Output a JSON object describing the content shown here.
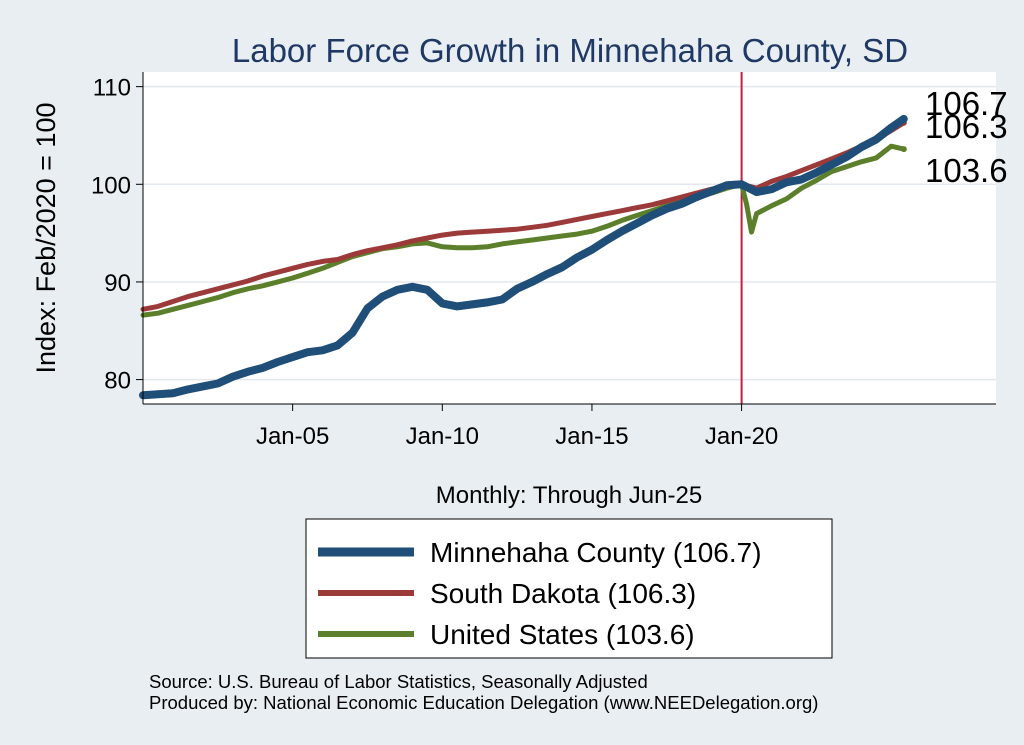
{
  "chart_data": {
    "type": "line",
    "title": "Labor Force Growth in Minnehaha  County, SD",
    "ylabel": "Index: Feb/2020 = 100",
    "xlabel": "Monthly: Through Jun-25",
    "ylim": [
      77.5,
      111.5
    ],
    "xlim": [
      2000.0,
      2028.5
    ],
    "yticks": [
      80,
      90,
      100,
      110
    ],
    "xticks": [
      {
        "label": "Jan-05",
        "x": 2005.0
      },
      {
        "label": "Jan-10",
        "x": 2010.0
      },
      {
        "label": "Jan-15",
        "x": 2015.0
      },
      {
        "label": "Jan-20",
        "x": 2020.0
      }
    ],
    "reference_line": {
      "x": 2020.0,
      "color": "#c0203b"
    },
    "end_labels": [
      "106.7",
      "106.3",
      "103.6"
    ],
    "series": [
      {
        "name": "Minnehaha  County",
        "end_value": "106.7",
        "color": "#1f4e79",
        "width": 8,
        "x": [
          2000.0,
          2000.5,
          2001.0,
          2001.5,
          2002.0,
          2002.5,
          2003.0,
          2003.5,
          2004.0,
          2004.5,
          2005.0,
          2005.5,
          2006.0,
          2006.5,
          2007.0,
          2007.5,
          2008.0,
          2008.5,
          2009.0,
          2009.5,
          2010.0,
          2010.5,
          2011.0,
          2011.5,
          2012.0,
          2012.5,
          2013.0,
          2013.5,
          2014.0,
          2014.5,
          2015.0,
          2015.5,
          2016.0,
          2016.5,
          2017.0,
          2017.5,
          2018.0,
          2018.5,
          2019.0,
          2019.5,
          2020.0,
          2020.5,
          2021.0,
          2021.5,
          2022.0,
          2022.5,
          2023.0,
          2023.5,
          2024.0,
          2024.5,
          2025.0,
          2025.42
        ],
        "values": [
          78.4,
          78.5,
          78.6,
          79.0,
          79.3,
          79.6,
          80.3,
          80.8,
          81.2,
          81.8,
          82.3,
          82.8,
          83.0,
          83.5,
          84.8,
          87.3,
          88.5,
          89.2,
          89.5,
          89.2,
          87.8,
          87.5,
          87.7,
          87.9,
          88.2,
          89.3,
          90.0,
          90.8,
          91.5,
          92.5,
          93.3,
          94.3,
          95.2,
          96.0,
          96.8,
          97.5,
          98.0,
          98.7,
          99.3,
          99.9,
          100.0,
          99.2,
          99.5,
          100.2,
          100.5,
          101.2,
          102.0,
          102.8,
          103.8,
          104.6,
          105.8,
          106.7
        ]
      },
      {
        "name": "South Dakota",
        "end_value": "106.3",
        "color": "#9c3a3a",
        "width": 5,
        "x": [
          2000.0,
          2000.5,
          2001.0,
          2001.5,
          2002.0,
          2002.5,
          2003.0,
          2003.5,
          2004.0,
          2004.5,
          2005.0,
          2005.5,
          2006.0,
          2006.5,
          2007.0,
          2007.5,
          2008.0,
          2008.5,
          2009.0,
          2009.5,
          2010.0,
          2010.5,
          2011.0,
          2011.5,
          2012.0,
          2012.5,
          2013.0,
          2013.5,
          2014.0,
          2014.5,
          2015.0,
          2015.5,
          2016.0,
          2016.5,
          2017.0,
          2017.5,
          2018.0,
          2018.5,
          2019.0,
          2019.5,
          2020.0,
          2020.5,
          2021.0,
          2021.5,
          2022.0,
          2022.5,
          2023.0,
          2023.5,
          2024.0,
          2024.5,
          2025.0,
          2025.42
        ],
        "values": [
          87.2,
          87.5,
          88.0,
          88.5,
          88.9,
          89.3,
          89.7,
          90.1,
          90.6,
          91.0,
          91.4,
          91.8,
          92.1,
          92.3,
          92.8,
          93.2,
          93.5,
          93.8,
          94.2,
          94.5,
          94.8,
          95.0,
          95.1,
          95.2,
          95.3,
          95.4,
          95.6,
          95.8,
          96.1,
          96.4,
          96.7,
          97.0,
          97.3,
          97.6,
          97.9,
          98.3,
          98.7,
          99.1,
          99.5,
          99.8,
          100.0,
          99.6,
          100.3,
          100.8,
          101.4,
          102.0,
          102.6,
          103.2,
          103.9,
          104.6,
          105.5,
          106.3
        ]
      },
      {
        "name": "United States",
        "end_value": "103.6",
        "color": "#5b7f2a",
        "width": 5,
        "x": [
          2000.0,
          2000.5,
          2001.0,
          2001.5,
          2002.0,
          2002.5,
          2003.0,
          2003.5,
          2004.0,
          2004.5,
          2005.0,
          2005.5,
          2006.0,
          2006.5,
          2007.0,
          2007.5,
          2008.0,
          2008.5,
          2009.0,
          2009.5,
          2010.0,
          2010.5,
          2011.0,
          2011.5,
          2012.0,
          2012.5,
          2013.0,
          2013.5,
          2014.0,
          2014.5,
          2015.0,
          2015.5,
          2016.0,
          2016.5,
          2017.0,
          2017.5,
          2018.0,
          2018.5,
          2019.0,
          2019.5,
          2020.0,
          2020.17,
          2020.33,
          2020.5,
          2021.0,
          2021.5,
          2022.0,
          2022.5,
          2023.0,
          2023.5,
          2024.0,
          2024.5,
          2025.0,
          2025.42
        ],
        "values": [
          86.6,
          86.8,
          87.2,
          87.6,
          88.0,
          88.4,
          88.9,
          89.3,
          89.6,
          90.0,
          90.4,
          90.9,
          91.4,
          92.0,
          92.6,
          93.0,
          93.4,
          93.6,
          93.9,
          94.0,
          93.6,
          93.5,
          93.5,
          93.6,
          93.9,
          94.1,
          94.3,
          94.5,
          94.7,
          94.9,
          95.2,
          95.7,
          96.3,
          96.8,
          97.3,
          97.8,
          98.3,
          98.7,
          99.1,
          99.6,
          100.0,
          97.9,
          95.1,
          97.0,
          97.8,
          98.5,
          99.6,
          100.4,
          101.3,
          101.8,
          102.3,
          102.7,
          103.9,
          103.6
        ]
      }
    ]
  },
  "legend": {
    "items": [
      {
        "label": "Minnehaha  County (106.7)"
      },
      {
        "label": "South Dakota (106.3)"
      },
      {
        "label": "United States (103.6)"
      }
    ]
  },
  "footer": {
    "source": "Source: U.S. Bureau of Labor Statistics, Seasonally Adjusted",
    "produced": "Produced by: National Economic Education Delegation (www.NEEDelegation.org)"
  }
}
